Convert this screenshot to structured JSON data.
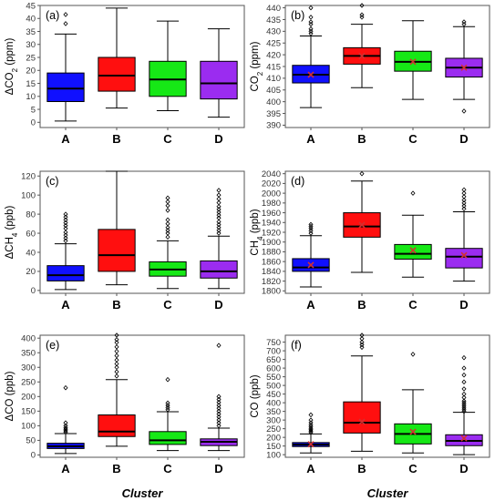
{
  "figure": {
    "xlabel": "Cluster",
    "box_colors": {
      "A": "#1010ff",
      "B": "#ff0f0f",
      "C": "#16e816",
      "D": "#9b2cf0"
    },
    "mean_marker_color": "#d33030",
    "outlier_marker": "diamond"
  },
  "chart_data": [
    {
      "type": "boxplot",
      "panel": "(a)",
      "ylabel": "ΔCO₂ (ppm)",
      "ylim": [
        -2,
        45
      ],
      "yticks": [
        0,
        5,
        10,
        15,
        20,
        25,
        30,
        35,
        40,
        45
      ],
      "categories": [
        "A",
        "B",
        "C",
        "D"
      ],
      "boxes": [
        {
          "cat": "A",
          "whislo": 0.5,
          "q1": 8,
          "med": 13,
          "q3": 19,
          "whishi": 34,
          "outliers": [
            38,
            41.5
          ]
        },
        {
          "cat": "B",
          "whislo": 5.5,
          "q1": 12,
          "med": 18,
          "q3": 25,
          "whishi": 44,
          "outliers": []
        },
        {
          "cat": "C",
          "whislo": 4.5,
          "q1": 10,
          "med": 16.5,
          "q3": 23.5,
          "whishi": 39,
          "outliers": []
        },
        {
          "cat": "D",
          "whislo": 2,
          "q1": 9,
          "med": 15,
          "q3": 23.5,
          "whishi": 36,
          "outliers": []
        }
      ]
    },
    {
      "type": "boxplot",
      "panel": "(b)",
      "ylabel": "CO₂ (ppm)",
      "ylim": [
        389,
        441
      ],
      "yticks": [
        390,
        395,
        400,
        405,
        410,
        415,
        420,
        425,
        430,
        435,
        440
      ],
      "categories": [
        "A",
        "B",
        "C",
        "D"
      ],
      "boxes": [
        {
          "cat": "A",
          "whislo": 397.5,
          "q1": 408,
          "med": 411.5,
          "q3": 415.5,
          "whishi": 428,
          "mean": 411.5,
          "outliers": [
            429,
            430,
            431,
            433,
            434,
            436,
            440
          ]
        },
        {
          "cat": "B",
          "whislo": 406,
          "q1": 416,
          "med": 419.5,
          "q3": 423,
          "whishi": 433,
          "mean": 419.5,
          "outliers": [
            436,
            437,
            441
          ]
        },
        {
          "cat": "C",
          "whislo": 401,
          "q1": 413,
          "med": 417,
          "q3": 421.5,
          "whishi": 434.5,
          "mean": 417,
          "outliers": []
        },
        {
          "cat": "D",
          "whislo": 401,
          "q1": 410.5,
          "med": 414.5,
          "q3": 418.5,
          "whishi": 432,
          "mean": 414.5,
          "outliers": [
            396,
            433,
            434
          ]
        }
      ]
    },
    {
      "type": "boxplot",
      "panel": "(c)",
      "ylabel": "ΔCH₄ (ppb)",
      "ylim": [
        -3,
        125
      ],
      "yticks": [
        0,
        20,
        40,
        60,
        80,
        100,
        120
      ],
      "categories": [
        "A",
        "B",
        "C",
        "D"
      ],
      "boxes": [
        {
          "cat": "A",
          "whislo": 1,
          "q1": 10,
          "med": 16,
          "q3": 26,
          "whishi": 49,
          "outliers": [
            52,
            55,
            58,
            61,
            65,
            68,
            71,
            74,
            77,
            80
          ]
        },
        {
          "cat": "B",
          "whislo": 6,
          "q1": 20,
          "med": 37,
          "q3": 64,
          "whishi": 125,
          "outliers": []
        },
        {
          "cat": "C",
          "whislo": 2,
          "q1": 15,
          "med": 22,
          "q3": 30,
          "whishi": 52,
          "outliers": [
            56,
            60,
            63,
            66,
            70,
            74,
            84,
            89,
            93,
            97
          ]
        },
        {
          "cat": "D",
          "whislo": 2,
          "q1": 13,
          "med": 20,
          "q3": 31,
          "whishi": 57,
          "outliers": [
            60,
            63,
            66,
            69,
            72,
            76,
            79,
            82,
            85,
            88,
            92,
            96,
            100,
            105
          ]
        }
      ]
    },
    {
      "type": "boxplot",
      "panel": "(d)",
      "ylabel": "CH₄ (ppb)",
      "ylim": [
        1795,
        2045
      ],
      "yticks": [
        1800,
        1820,
        1840,
        1860,
        1880,
        1900,
        1920,
        1940,
        1960,
        1980,
        2000,
        2020,
        2040
      ],
      "categories": [
        "A",
        "B",
        "C",
        "D"
      ],
      "boxes": [
        {
          "cat": "A",
          "whislo": 1808,
          "q1": 1840,
          "med": 1848,
          "q3": 1866,
          "whishi": 1913,
          "mean": 1853,
          "outliers": [
            1918,
            1923,
            1928,
            1932,
            1936
          ]
        },
        {
          "cat": "B",
          "whislo": 1838,
          "q1": 1910,
          "med": 1932,
          "q3": 1960,
          "whishi": 2025,
          "mean": 1935,
          "outliers": [
            2040
          ]
        },
        {
          "cat": "C",
          "whislo": 1828,
          "q1": 1865,
          "med": 1876,
          "q3": 1895,
          "whishi": 1955,
          "mean": 1883,
          "outliers": [
            2000
          ]
        },
        {
          "cat": "D",
          "whislo": 1820,
          "q1": 1847,
          "med": 1870,
          "q3": 1887,
          "whishi": 1962,
          "mean": 1873,
          "outliers": [
            1968,
            1974,
            1980,
            1986,
            1993,
            2000,
            2007
          ]
        }
      ]
    },
    {
      "type": "boxplot",
      "panel": "(e)",
      "ylabel": "ΔCO (ppb)",
      "ylim": [
        -8,
        410
      ],
      "yticks": [
        0,
        50,
        100,
        150,
        200,
        250,
        300,
        350,
        400
      ],
      "categories": [
        "A",
        "B",
        "C",
        "D"
      ],
      "boxes": [
        {
          "cat": "A",
          "whislo": 5,
          "q1": 22,
          "med": 30,
          "q3": 40,
          "whishi": 73,
          "outliers": [
            78,
            83,
            88,
            93,
            100,
            110,
            230
          ]
        },
        {
          "cat": "B",
          "whislo": 30,
          "q1": 63,
          "med": 80,
          "q3": 137,
          "whishi": 258,
          "outliers": [
            270,
            285,
            300,
            312,
            325,
            340,
            355,
            370,
            385,
            395,
            410
          ]
        },
        {
          "cat": "C",
          "whislo": 15,
          "q1": 36,
          "med": 50,
          "q3": 80,
          "whishi": 148,
          "outliers": [
            155,
            162,
            170,
            178,
            258
          ]
        },
        {
          "cat": "D",
          "whislo": 15,
          "q1": 32,
          "med": 45,
          "q3": 55,
          "whishi": 92,
          "outliers": [
            100,
            110,
            120,
            130,
            140,
            150,
            160,
            170,
            180,
            190,
            200,
            375
          ]
        }
      ]
    },
    {
      "type": "boxplot",
      "panel": "(f)",
      "ylabel": "CO (ppb)",
      "ylim": [
        85,
        790
      ],
      "yticks": [
        100,
        150,
        200,
        250,
        300,
        350,
        400,
        450,
        500,
        550,
        600,
        650,
        700,
        750
      ],
      "categories": [
        "A",
        "B",
        "C",
        "D"
      ],
      "boxes": [
        {
          "cat": "A",
          "whislo": 110,
          "q1": 147,
          "med": 158,
          "q3": 170,
          "whishi": 220,
          "mean": 160,
          "outliers": [
            228,
            236,
            244,
            252,
            262,
            272,
            285,
            300,
            330
          ]
        },
        {
          "cat": "B",
          "whislo": 120,
          "q1": 225,
          "med": 285,
          "q3": 405,
          "whishi": 670,
          "mean": 290,
          "outliers": [
            720,
            735,
            750,
            770,
            790
          ]
        },
        {
          "cat": "C",
          "whislo": 110,
          "q1": 162,
          "med": 220,
          "q3": 278,
          "whishi": 475,
          "mean": 232,
          "outliers": [
            680
          ]
        },
        {
          "cat": "D",
          "whislo": 100,
          "q1": 152,
          "med": 180,
          "q3": 215,
          "whishi": 345,
          "mean": 195,
          "outliers": [
            350,
            360,
            370,
            380,
            390,
            400,
            410,
            430,
            450,
            480,
            520,
            560,
            600,
            660
          ]
        }
      ]
    }
  ]
}
